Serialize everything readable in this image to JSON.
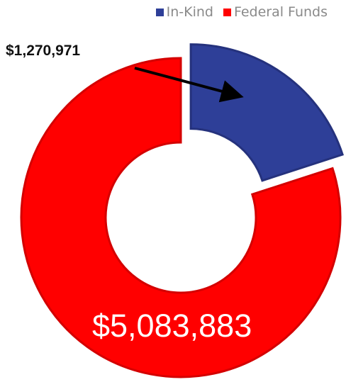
{
  "chart_data": {
    "type": "pie",
    "variant": "donut",
    "categories": [
      "In-Kind",
      "Federal Funds"
    ],
    "values": [
      1270971,
      5083883
    ],
    "data_labels": [
      "$1,270,971",
      "$5,083,883"
    ],
    "colors": [
      "#2e3f98",
      "#ff0000"
    ],
    "legend_position": "top-right",
    "exploded_slice": "In-Kind"
  },
  "legend": [
    {
      "label": "In-Kind",
      "color": "#2e3f98"
    },
    {
      "label": "Federal Funds",
      "color": "#ff0000"
    }
  ]
}
